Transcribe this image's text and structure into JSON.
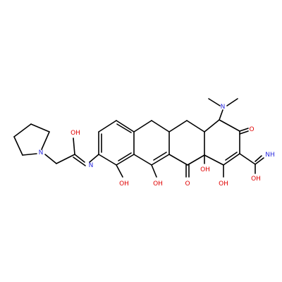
{
  "colors": {
    "oxygen": "#e00000",
    "nitrogen": "#2a2adf",
    "carbon": "#000000",
    "background": "#ffffff"
  },
  "atom_labels": {
    "n_dimethyl": "N",
    "o_ketone_top": "O",
    "n_amide": "NH",
    "oh_amide": "OH",
    "oh_c1": "OH",
    "oh_c12a": "OH",
    "o_ketone_c11": "O",
    "oh_c10": "OH",
    "oh_c12": "OH",
    "n_imine": "N",
    "oh_imidate": "OH",
    "n_pyrrolidine": "N"
  }
}
